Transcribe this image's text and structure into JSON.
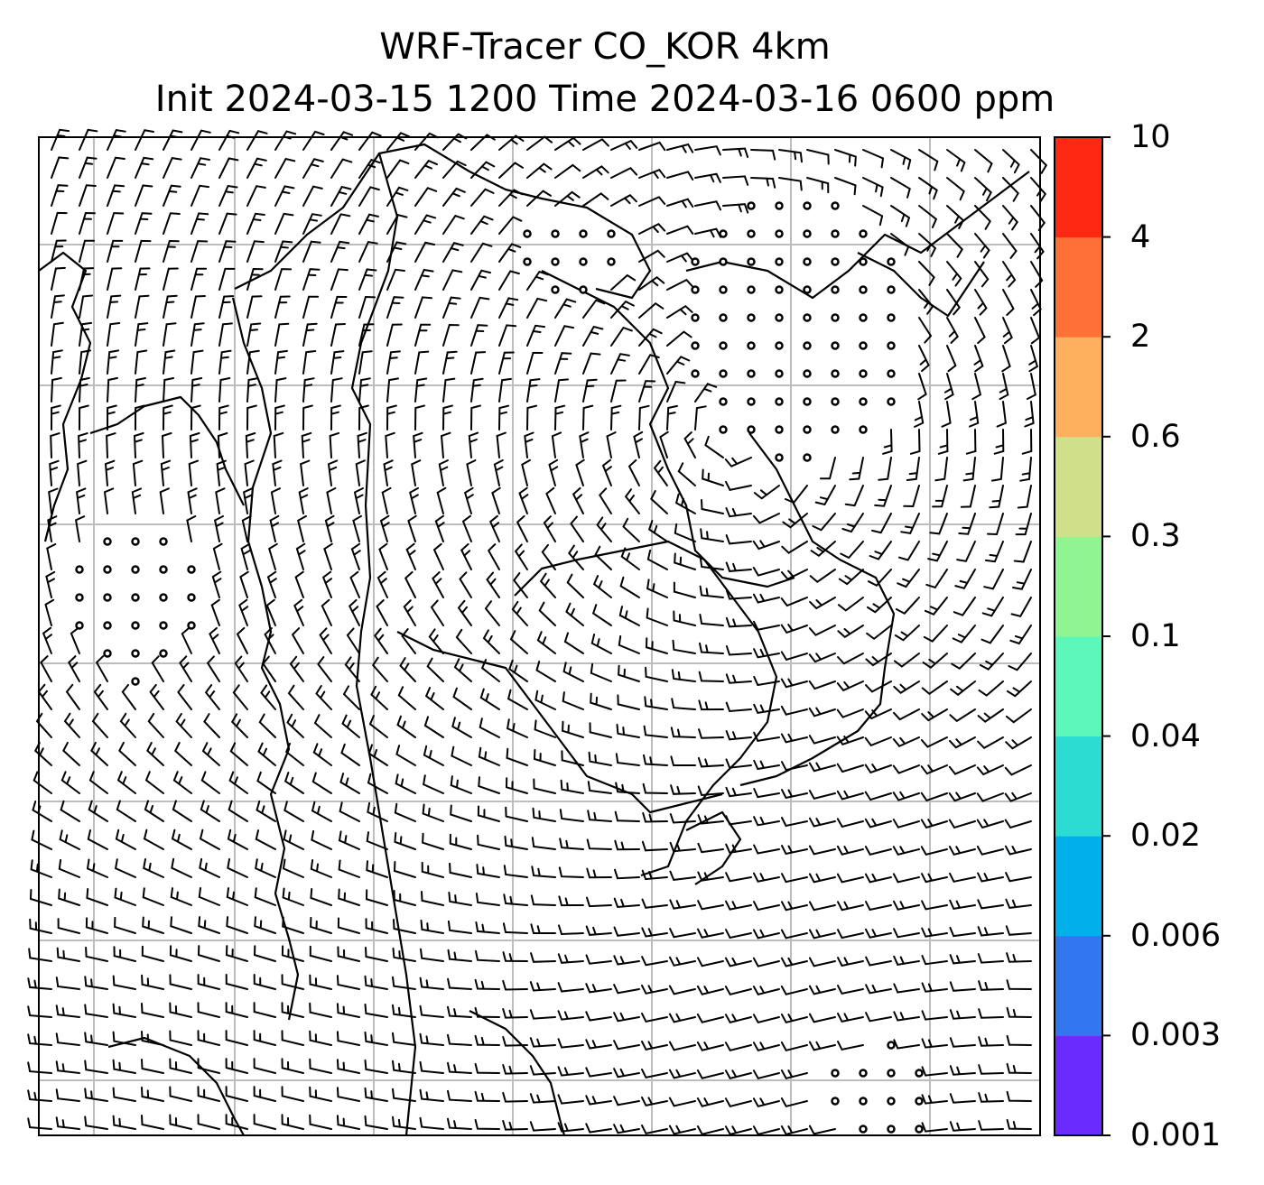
{
  "title": {
    "line1": "WRF-Tracer CO_KOR 4km",
    "line2": "Init 2024-03-15 1200 Time 2024-03-16 0600 ppm"
  },
  "colorbar": {
    "levels": [
      "0.001",
      "0.003",
      "0.006",
      "0.02",
      "0.04",
      "0.1",
      "0.3",
      "0.6",
      "2",
      "4",
      "10"
    ],
    "colors": [
      "#6a2bff",
      "#3377f0",
      "#00b0eb",
      "#2cdcd2",
      "#5cf7bb",
      "#8ff591",
      "#d0e08a",
      "#ffb05f",
      "#ff7036",
      "#ff2913"
    ]
  },
  "map": {
    "field": "wind barbs over coastline outline",
    "grid": true,
    "background_value": "below 0.001 (white)"
  }
}
